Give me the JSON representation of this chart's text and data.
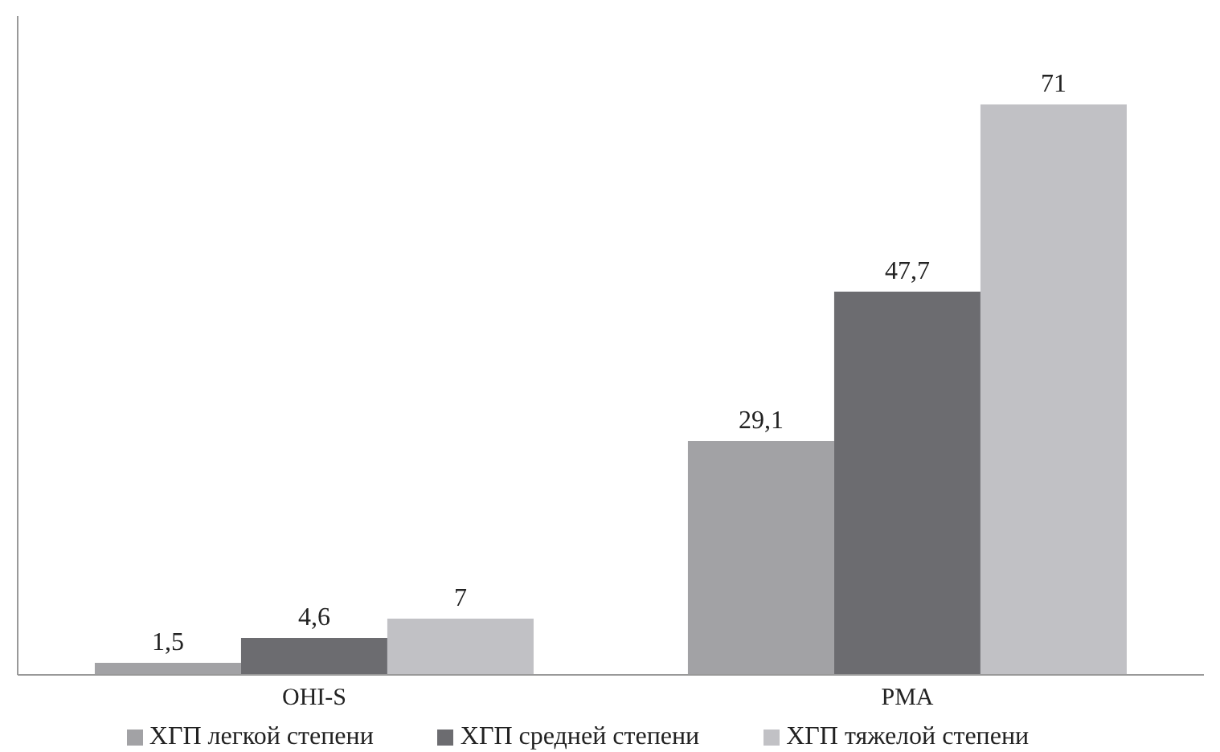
{
  "chart_data": {
    "type": "bar",
    "categories": [
      "OHI-S",
      "PMA"
    ],
    "series": [
      {
        "name": "ХГП легкой степени",
        "color": "#a2a2a5",
        "values": [
          1.5,
          29.1
        ],
        "value_labels": [
          "1,5",
          "29,1"
        ]
      },
      {
        "name": "ХГП средней степени",
        "color": "#6c6c70",
        "values": [
          4.6,
          47.7
        ],
        "value_labels": [
          "4,6",
          "47,7"
        ]
      },
      {
        "name": "ХГП тяжелой степени",
        "color": "#c1c1c5",
        "values": [
          7,
          71
        ],
        "value_labels": [
          "7",
          "71"
        ]
      }
    ],
    "ylim": [
      0,
      82
    ],
    "tick_labels": "x",
    "legend": "bottom"
  }
}
